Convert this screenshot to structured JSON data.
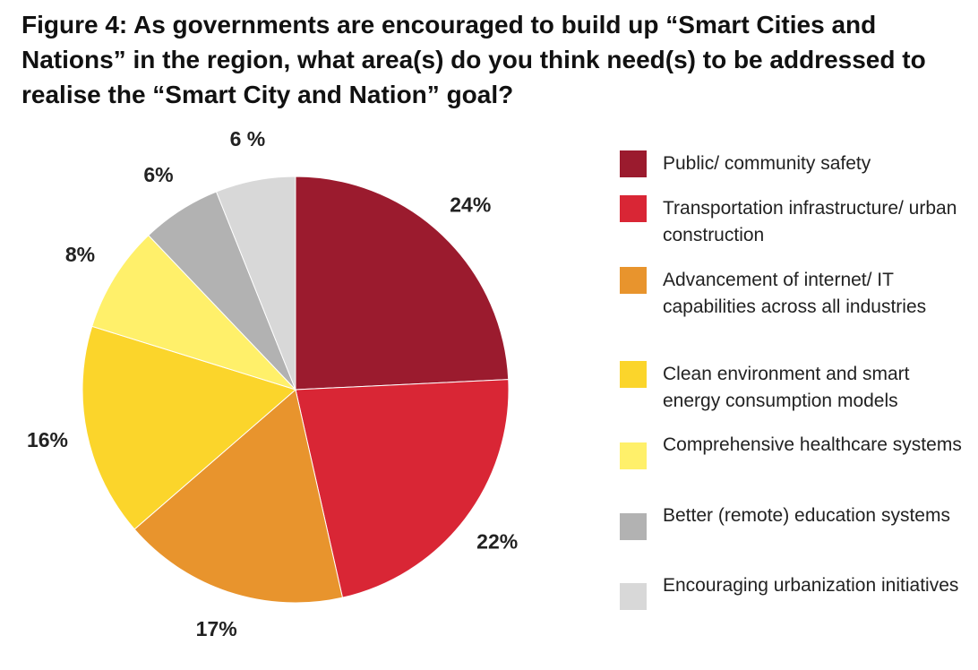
{
  "chart_data": {
    "type": "pie",
    "title": "Figure 4: As governments are encouraged to build up “Smart Cities and Nations” in the region, what area(s) do you think need(s) to be addressed to realise the “Smart City and Nation” goal?",
    "slices": [
      {
        "label": "Public/ community safety",
        "value": 24,
        "value_label": "24%",
        "color": "#9b1b2e"
      },
      {
        "label": "Transportation infrastructure/ urban construction",
        "value": 22,
        "value_label": "22%",
        "color": "#d92635"
      },
      {
        "label": "Advancement of internet/ IT capabilities across all industries",
        "value": 17,
        "value_label": "17%",
        "color": "#e8942d"
      },
      {
        "label": "Clean environment and smart energy consumption models",
        "value": 16,
        "value_label": "16%",
        "color": "#fbd52b"
      },
      {
        "label": "Comprehensive healthcare systems",
        "value": 8,
        "value_label": "8%",
        "color": "#fff06a"
      },
      {
        "label": "Better (remote) education systems",
        "value": 6,
        "value_label": "6%",
        "color": "#b2b2b2"
      },
      {
        "label": "Encouraging urbanization initiatives",
        "value": 6,
        "value_label": "6 %",
        "color": "#d8d8d8"
      }
    ],
    "legend_position": "right"
  }
}
